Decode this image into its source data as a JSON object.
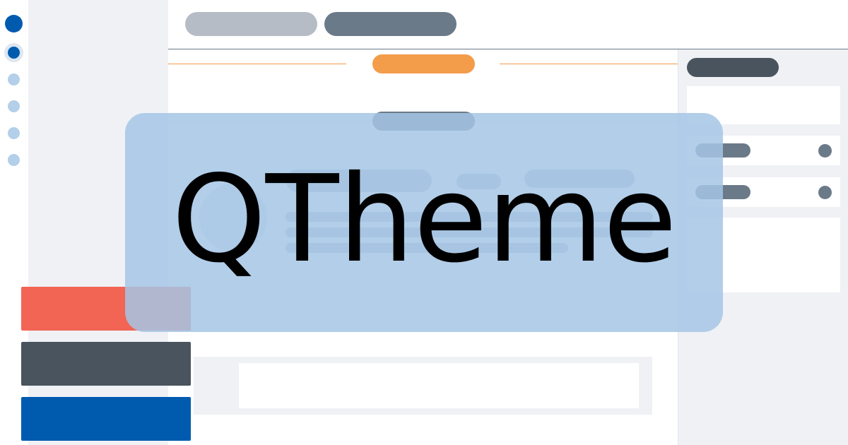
{
  "brand": {
    "name": "QTheme"
  },
  "colors": {
    "primary": "#005baf",
    "accent_orange": "#f39c4a",
    "danger": "#f26453",
    "dark": "#4a545e",
    "slate": "#6b7a89",
    "muted_pill": "#b5bcc5",
    "panel_bg": "#f0f1f5",
    "overlay": "#a5c5e5"
  },
  "sidebar_rail": {
    "items": [
      {
        "icon": "logo-dot-icon",
        "state": "brand"
      },
      {
        "icon": "nav-dot-icon",
        "state": "active"
      },
      {
        "icon": "nav-dot-icon",
        "state": "inactive"
      },
      {
        "icon": "nav-dot-icon",
        "state": "inactive"
      },
      {
        "icon": "nav-dot-icon",
        "state": "inactive"
      },
      {
        "icon": "nav-dot-icon",
        "state": "inactive"
      }
    ]
  },
  "action_buttons": [
    {
      "kind": "danger"
    },
    {
      "kind": "dark"
    },
    {
      "kind": "primary"
    }
  ]
}
